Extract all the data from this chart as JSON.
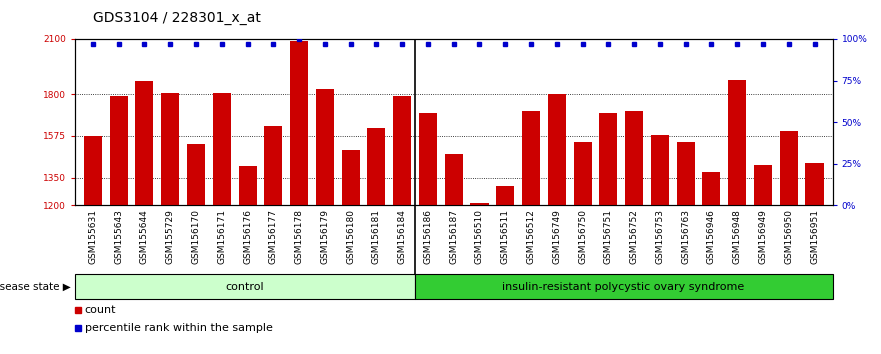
{
  "title": "GDS3104 / 228301_x_at",
  "samples": [
    "GSM155631",
    "GSM155643",
    "GSM155644",
    "GSM155729",
    "GSM156170",
    "GSM156171",
    "GSM156176",
    "GSM156177",
    "GSM156178",
    "GSM156179",
    "GSM156180",
    "GSM156181",
    "GSM156184",
    "GSM156186",
    "GSM156187",
    "GSM156510",
    "GSM156511",
    "GSM156512",
    "GSM156749",
    "GSM156750",
    "GSM156751",
    "GSM156752",
    "GSM156753",
    "GSM156763",
    "GSM156946",
    "GSM156948",
    "GSM156949",
    "GSM156950",
    "GSM156951"
  ],
  "counts": [
    1575,
    1790,
    1870,
    1810,
    1530,
    1810,
    1415,
    1630,
    2090,
    1830,
    1500,
    1620,
    1790,
    1700,
    1480,
    1210,
    1305,
    1710,
    1800,
    1545,
    1700,
    1710,
    1580,
    1545,
    1380,
    1880,
    1420,
    1600,
    1430
  ],
  "percentile_ranks": [
    97,
    97,
    97,
    97,
    97,
    97,
    97,
    97,
    100,
    97,
    97,
    97,
    97,
    97,
    97,
    97,
    97,
    97,
    97,
    97,
    97,
    97,
    97,
    97,
    97,
    97,
    97,
    97,
    97
  ],
  "control_count": 13,
  "ylim_left": [
    1200,
    2100
  ],
  "yticks_left": [
    1200,
    1350,
    1575,
    1800,
    2100
  ],
  "yticks_right_vals": [
    0,
    25,
    50,
    75,
    100
  ],
  "yticks_right_labels": [
    "0%",
    "25%",
    "50%",
    "75%",
    "100%"
  ],
  "bar_color": "#cc0000",
  "dot_color": "#0000cc",
  "control_bg": "#ccffcc",
  "disease_bg": "#33cc33",
  "xtick_bg": "#cccccc",
  "control_label": "control",
  "disease_label": "insulin-resistant polycystic ovary syndrome",
  "disease_state_label": "disease state",
  "legend_count": "count",
  "legend_percentile": "percentile rank within the sample",
  "title_fontsize": 10,
  "tick_fontsize": 6.5,
  "label_fontsize": 8
}
